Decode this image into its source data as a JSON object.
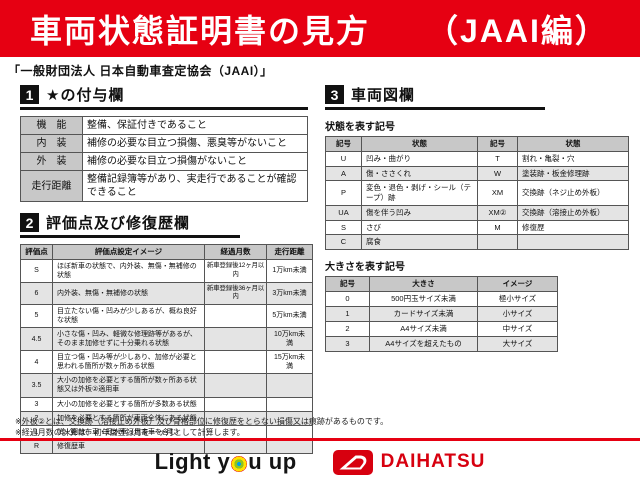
{
  "banner": {
    "title": "車両状態証明書の見方",
    "edition": "（JAAI編）",
    "bg_color": "#e60012",
    "text_color": "#ffffff"
  },
  "org_line": "「一般財団法人 日本自動車査定協会（JAAI）」",
  "sections": {
    "star": {
      "number": "1",
      "title": "★の付与欄",
      "rows": [
        [
          "機　能",
          "整備、保証付きであること"
        ],
        [
          "内　装",
          "補修の必要な目立つ損傷、悪臭等がないこと"
        ],
        [
          "外　装",
          "補修の必要な目立つ損傷がないこと"
        ],
        [
          "走行距離",
          "整備記録簿等があり、実走行であることが確認できること"
        ]
      ]
    },
    "rating": {
      "number": "2",
      "title": "評価点及び修復歴欄",
      "headers": [
        "評価点",
        "評価点設定イメージ",
        "経過月数",
        "走行距離"
      ],
      "rows": [
        [
          "S",
          "ほぼ新車の状態で、内外装、無傷・無補修の状態",
          "新車登録後12ヶ月以内",
          "1万km未満"
        ],
        [
          "6",
          "内外装、無傷・無補修の状態",
          "新車登録後36ヶ月以内",
          "3万km未満"
        ],
        [
          "5",
          "目立たない傷・凹みが少しあるが、概ね良好な状態",
          "",
          "5万km未満"
        ],
        [
          "4.5",
          "小さな傷・凹み、軽微な修理跡等があるが、そのまま加修せずに十分乗れる状態",
          "",
          "10万km未満"
        ],
        [
          "4",
          "目立つ傷・凹み等が少しあり、加修が必要と思われる箇所が数ヶ所ある状態",
          "",
          "15万km未満"
        ],
        [
          "3.5",
          "大小の加修を必要とする箇所が数ヶ所ある状態又は外板②適用車",
          "",
          ""
        ],
        [
          "3",
          "大小の加修を必要とする箇所が多数ある状態",
          "",
          ""
        ],
        [
          "2",
          "加修を必要とする箇所が車両全体にある状態",
          "",
          ""
        ],
        [
          "1",
          "消火剤散布車・冠水車（塩害車を含む）",
          "",
          ""
        ],
        [
          "R",
          "修復歴車",
          "",
          ""
        ]
      ]
    },
    "diagram": {
      "number": "3",
      "title": "車両図欄",
      "condition": {
        "label": "状態を表す記号",
        "headers": [
          "記号",
          "状態",
          "記号",
          "状態"
        ],
        "rows": [
          [
            "U",
            "凹み・曲がり",
            "T",
            "割れ・亀裂・穴"
          ],
          [
            "A",
            "傷・ささくれ",
            "W",
            "塗装跡・板金修理跡"
          ],
          [
            "P",
            "変色・退色・剥げ・シール（テープ）跡",
            "XM",
            "交換跡（ネジ止め外板）"
          ],
          [
            "UA",
            "傷を伴う凹み",
            "XM②",
            "交換跡（溶接止め外板）"
          ],
          [
            "S",
            "さび",
            "M",
            "修復歴"
          ],
          [
            "C",
            "腐食",
            "",
            ""
          ]
        ]
      },
      "size": {
        "label": "大きさを表す記号",
        "headers": [
          "記号",
          "大きさ",
          "イメージ"
        ],
        "rows": [
          [
            "0",
            "500円玉サイズ未満",
            "極小サイズ"
          ],
          [
            "1",
            "カードサイズ未満",
            "小サイズ"
          ],
          [
            "2",
            "A4サイズ未満",
            "中サイズ"
          ],
          [
            "3",
            "A4サイズを超えたもの",
            "大サイズ"
          ]
        ]
      }
    }
  },
  "notes": [
    "※外板②とは、交換跡（溶接止め外板）及び骨格部位に修復歴をとらない損傷又は痕跡があるものです。",
    "※経過月数の計算は、初年度登録月を一ヶ月として計算します。"
  ],
  "footer": {
    "slogan_full": "Light you up",
    "slogan_prefix": "Light y",
    "slogan_suffix": "u up",
    "brand": "DAIHATSU",
    "brand_color": "#d7000f",
    "icons": {
      "slogan_o": "color-target-icon",
      "brand_mark": "daihatsu-d-emblem-icon"
    }
  },
  "colors": {
    "banner_red": "#e60012",
    "brand_red": "#d7000f",
    "table_header_gray": "#c8c8c8",
    "zebra_gray": "#e4e4e4"
  }
}
